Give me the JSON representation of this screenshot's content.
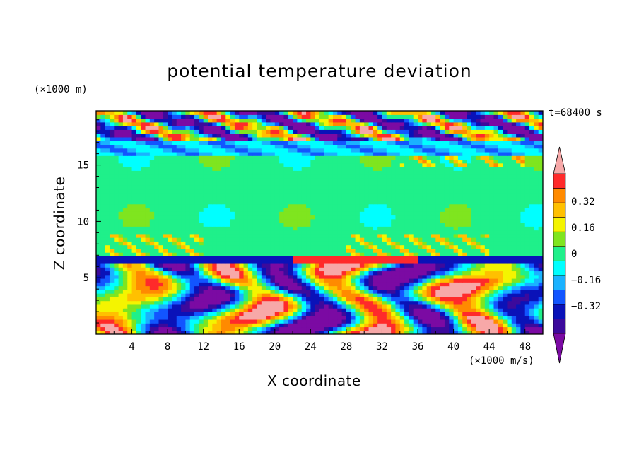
{
  "chart_data": {
    "type": "heatmap",
    "title": "potential temperature deviation",
    "xlabel": "X coordinate",
    "ylabel": "Z coordinate",
    "x_unit_label": "(×1000 m/s)",
    "y_unit_label": "(×1000 m)",
    "time_label": "t=68400 s",
    "xlim": [
      0,
      50
    ],
    "ylim": [
      0,
      19.8
    ],
    "x_ticks": [
      4,
      8,
      12,
      16,
      20,
      24,
      28,
      32,
      36,
      40,
      44,
      48
    ],
    "y_ticks": [
      5,
      10,
      15
    ],
    "colorbar": {
      "levels": [
        -0.48,
        -0.4,
        -0.32,
        -0.24,
        -0.16,
        -0.08,
        0,
        0.08,
        0.16,
        0.24,
        0.32,
        0.4,
        0.48
      ],
      "colors": [
        "#7b0aa3",
        "#3c0a9c",
        "#0a12b8",
        "#1255ff",
        "#1ab2ff",
        "#00ffff",
        "#1ff08a",
        "#7fe51f",
        "#f4f400",
        "#ffc000",
        "#ff8a00",
        "#ff2a2a",
        "#f7a8a8"
      ],
      "tick_labels": [
        "0.32",
        "0.16",
        "0",
        "−0.16",
        "−0.32"
      ],
      "tick_values": [
        0.32,
        0.16,
        0,
        -0.16,
        -0.32
      ],
      "extend": "both"
    },
    "layers": [
      {
        "z_range": [
          17.0,
          19.8
        ],
        "description": "upper layer: mix of strong negative and positive deviations"
      },
      {
        "z_range": [
          16.0,
          17.0
        ],
        "description": "slightly negative band"
      },
      {
        "z_range": [
          7.0,
          16.0
        ],
        "description": "near zero (0 to 0.08)"
      },
      {
        "z_range": [
          6.5,
          7.0
        ],
        "description": "negative band"
      },
      {
        "z_range": [
          0,
          6.5
        ],
        "description": "lower turbulent layer with eddies ranging from -0.48 to 0.48"
      }
    ]
  }
}
